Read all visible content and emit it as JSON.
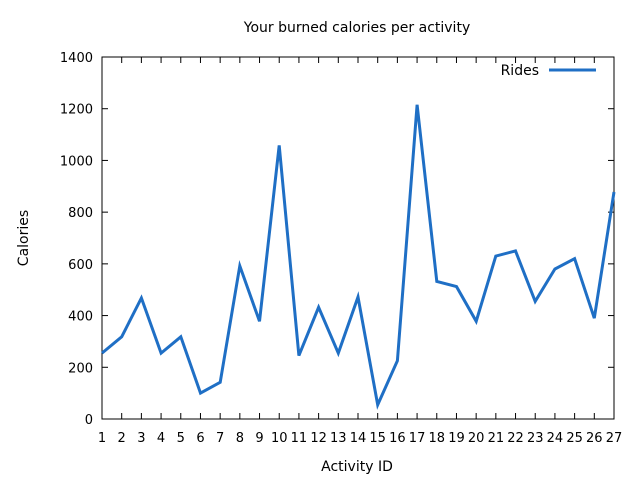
{
  "chart_data": {
    "type": "line",
    "title": "Your burned calories per activity",
    "xlabel": "Activity ID",
    "ylabel": "Calories",
    "x": [
      1,
      2,
      3,
      4,
      5,
      6,
      7,
      8,
      9,
      10,
      11,
      12,
      13,
      14,
      15,
      16,
      17,
      18,
      19,
      20,
      21,
      22,
      23,
      24,
      25,
      26,
      27
    ],
    "xlim": [
      1,
      27
    ],
    "ylim": [
      0,
      1400
    ],
    "yticks": [
      0,
      200,
      400,
      600,
      800,
      1000,
      1200,
      1400
    ],
    "grid": false,
    "legend_position": "top-right",
    "series": [
      {
        "name": "Rides",
        "color": "#1f6fc5",
        "values": [
          255,
          318,
          468,
          255,
          318,
          100,
          142,
          592,
          378,
          1058,
          245,
          432,
          255,
          472,
          55,
          225,
          1215,
          532,
          512,
          378,
          630,
          650,
          455,
          580,
          620,
          390,
          878
        ]
      }
    ]
  }
}
